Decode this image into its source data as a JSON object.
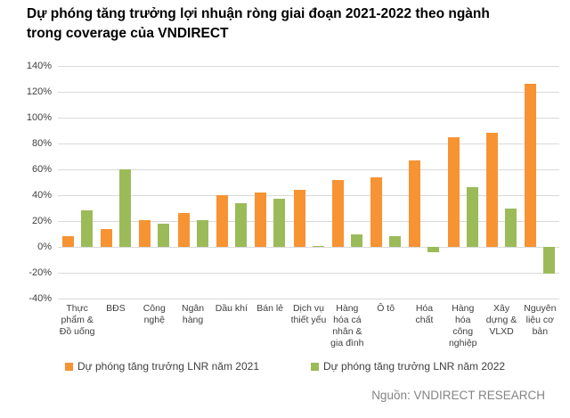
{
  "title": "Dự phóng tăng trưởng lợi nhuận ròng giai đoạn 2021-2022 theo ngành trong coverage của VNDIRECT",
  "source": "Nguồn: VNDIRECT RESEARCH",
  "colors": {
    "series_2021": "#F79333",
    "series_2022": "#9BBB59",
    "gridline": "#D9D9D9",
    "axis_text": "#404040",
    "source_text": "#848484",
    "title_text": "#000000",
    "background": "#FFFFFF"
  },
  "chart_data": {
    "type": "bar",
    "title": "Dự phóng tăng trưởng lợi nhuận ròng giai đoạn 2021-2022 theo ngành trong coverage của VNDIRECT",
    "xlabel": "",
    "ylabel": "",
    "ylim": [
      -40,
      140
    ],
    "ytick_step": 20,
    "ytick_labels": [
      "140%",
      "120%",
      "100%",
      "80%",
      "60%",
      "40%",
      "20%",
      "0%",
      "-20%",
      "-40%"
    ],
    "grid": true,
    "legend_position": "bottom",
    "categories": [
      "Thực phẩm & Đồ uống",
      "BĐS",
      "Công nghệ",
      "Ngân hàng",
      "Dầu khí",
      "Bán lẻ",
      "Dịch vụ thiết yếu",
      "Hàng hóa cá nhân & gia đình",
      "Ô tô",
      "Hóa chất",
      "Hàng hóa công nghiệp",
      "Xây dựng & VLXD",
      "Nguyên liệu cơ bản"
    ],
    "category_label_lines": [
      [
        "Thực",
        "phẩm &",
        "Đồ uống"
      ],
      [
        "BĐS"
      ],
      [
        "Công",
        "nghệ"
      ],
      [
        "Ngân",
        "hàng"
      ],
      [
        "Dầu khí"
      ],
      [
        "Bán lẻ"
      ],
      [
        "Dịch vụ",
        "thiết yếu"
      ],
      [
        "Hàng",
        "hóa cá",
        "nhân &",
        "gia đình"
      ],
      [
        "Ô tô"
      ],
      [
        "Hóa",
        "chất"
      ],
      [
        "Hàng",
        "hóa",
        "công",
        "nghiệp"
      ],
      [
        "Xây",
        "dựng &",
        "VLXD"
      ],
      [
        "Nguyên",
        "liệu cơ",
        "bản"
      ]
    ],
    "series": [
      {
        "name": "Dự phóng tăng trưởng LNR năm 2021",
        "color": "#F79333",
        "values": [
          8,
          14,
          21,
          26,
          40,
          42,
          44,
          52,
          54,
          67,
          85,
          88,
          126
        ]
      },
      {
        "name": "Dự phóng tăng trưởng LNR năm 2022",
        "color": "#9BBB59",
        "values": [
          28,
          60,
          18,
          21,
          34,
          37,
          1,
          10,
          8,
          -4,
          46,
          30,
          -21
        ]
      }
    ]
  }
}
